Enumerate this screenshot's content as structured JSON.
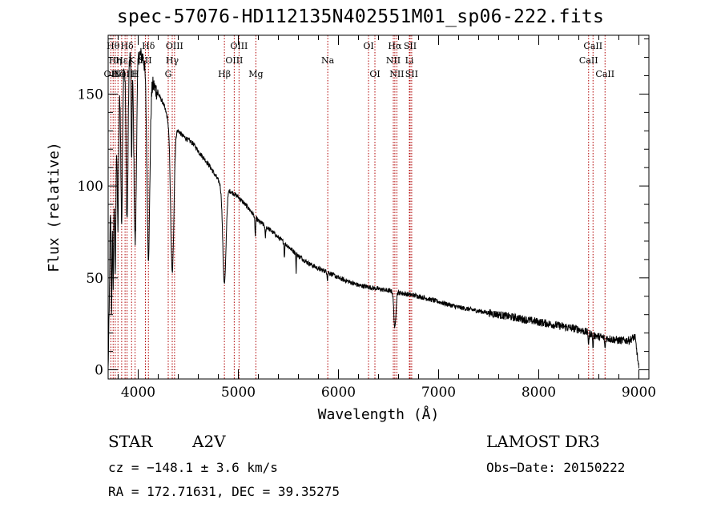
{
  "chart_data": {
    "type": "line",
    "title": "spec-57076-HD112135N402551M01_sp06-222.fits",
    "xlabel": "Wavelength (Å)",
    "ylabel": "Flux (relative)",
    "xlim": [
      3700,
      9100
    ],
    "ylim": [
      -5,
      182
    ],
    "xticks": [
      4000,
      5000,
      6000,
      7000,
      8000,
      9000
    ],
    "xtick_labels": [
      "4000",
      "5000",
      "6000",
      "7000",
      "8000",
      "9000"
    ],
    "yticks": [
      0,
      50,
      100,
      150
    ],
    "ytick_labels": [
      "0",
      "50",
      "100",
      "150"
    ],
    "series": [
      {
        "name": "Flux",
        "continuum_x": [
          3700,
          3710,
          3720,
          3760,
          3800,
          3850,
          3900,
          3950,
          4000,
          4050,
          4100,
          4150,
          4200,
          4250,
          4300,
          4350,
          4400,
          4450,
          4500,
          4550,
          4600,
          4700,
          4800,
          4850,
          4900,
          5000,
          5100,
          5200,
          5300,
          5400,
          5500,
          5600,
          5700,
          5800,
          5900,
          6000,
          6100,
          6200,
          6300,
          6400,
          6500,
          6600,
          6700,
          6800,
          7000,
          7200,
          7400,
          7600,
          7800,
          8000,
          8200,
          8400,
          8500,
          8600,
          8700,
          8800,
          8900,
          8960,
          8980,
          9000
        ],
        "continuum_y": [
          0,
          30,
          80,
          110,
          150,
          165,
          175,
          168,
          172,
          170,
          158,
          155,
          150,
          145,
          136,
          132,
          130,
          127,
          125,
          123,
          119,
          112,
          103,
          99,
          98,
          94,
          88,
          81,
          77,
          72,
          67,
          62,
          58,
          55,
          53,
          50,
          48,
          46,
          45,
          44,
          43,
          42,
          41,
          40,
          37,
          34,
          32,
          30,
          28,
          26,
          24,
          22,
          20,
          18,
          17,
          16,
          16,
          18,
          10,
          0
        ],
        "absorption_lines": [
          {
            "center": 3734,
            "depth": 60,
            "width": 4
          },
          {
            "center": 3750,
            "depth": 55,
            "width": 5
          },
          {
            "center": 3771,
            "depth": 68,
            "width": 6
          },
          {
            "center": 3798,
            "depth": 70,
            "width": 7
          },
          {
            "center": 3835,
            "depth": 80,
            "width": 8
          },
          {
            "center": 3889,
            "depth": 90,
            "width": 10
          },
          {
            "center": 3934,
            "depth": 60,
            "width": 4
          },
          {
            "center": 3970,
            "depth": 100,
            "width": 12
          },
          {
            "center": 4102,
            "depth": 95,
            "width": 14
          },
          {
            "center": 4340,
            "depth": 80,
            "width": 16
          },
          {
            "center": 4861,
            "depth": 52,
            "width": 16
          },
          {
            "center": 5169,
            "depth": 10,
            "width": 4
          },
          {
            "center": 5270,
            "depth": 6,
            "width": 4
          },
          {
            "center": 5460,
            "depth": 8,
            "width": 3
          },
          {
            "center": 5577,
            "depth": 12,
            "width": 2
          },
          {
            "center": 5890,
            "depth": 4,
            "width": 3
          },
          {
            "center": 6563,
            "depth": 20,
            "width": 10
          },
          {
            "center": 8498,
            "depth": 6,
            "width": 4
          },
          {
            "center": 8542,
            "depth": 7,
            "width": 4
          },
          {
            "center": 8662,
            "depth": 6,
            "width": 4
          }
        ]
      }
    ],
    "reference_lines": [
      {
        "x": 3727,
        "labels": [
          {
            "text": "OII",
            "row": 3
          }
        ]
      },
      {
        "x": 3750,
        "labels": [
          {
            "text": "Hθ",
            "row": 1
          }
        ]
      },
      {
        "x": 3771,
        "labels": [
          {
            "text": "Hη",
            "row": 2
          }
        ]
      },
      {
        "x": 3798,
        "labels": [
          {
            "text": "Hζ",
            "row": 3
          }
        ]
      },
      {
        "x": 3835,
        "labels": [
          {
            "text": "Hε",
            "row": 2
          }
        ]
      },
      {
        "x": 3869,
        "labels": [
          {
            "text": "NeIII",
            "row": 3
          }
        ]
      },
      {
        "x": 3889,
        "labels": [
          {
            "text": "Hδ",
            "row": 1
          }
        ]
      },
      {
        "x": 3934,
        "labels": [
          {
            "text": "K",
            "row": 2
          }
        ]
      },
      {
        "x": 3969,
        "labels": [
          {
            "text": "H",
            "row": 3
          }
        ]
      },
      {
        "x": 4072,
        "labels": [
          {
            "text": "SII",
            "row": 2
          }
        ]
      },
      {
        "x": 4102,
        "labels": [
          {
            "text": "Hδ",
            "row": 1
          }
        ]
      },
      {
        "x": 4300,
        "labels": [
          {
            "text": "G",
            "row": 3
          }
        ]
      },
      {
        "x": 4340,
        "labels": [
          {
            "text": "Hγ",
            "row": 2
          }
        ]
      },
      {
        "x": 4363,
        "labels": [
          {
            "text": "OIII",
            "row": 1
          }
        ]
      },
      {
        "x": 4861,
        "labels": [
          {
            "text": "Hβ",
            "row": 3
          }
        ]
      },
      {
        "x": 4959,
        "labels": [
          {
            "text": "OIII",
            "row": 2
          }
        ]
      },
      {
        "x": 5007,
        "labels": [
          {
            "text": "OIII",
            "row": 1
          }
        ]
      },
      {
        "x": 5175,
        "labels": [
          {
            "text": "Mg",
            "row": 3
          }
        ]
      },
      {
        "x": 5893,
        "labels": [
          {
            "text": "Na",
            "row": 2
          }
        ]
      },
      {
        "x": 6300,
        "labels": [
          {
            "text": "OI",
            "row": 1
          }
        ]
      },
      {
        "x": 6364,
        "labels": [
          {
            "text": "OI",
            "row": 3
          }
        ]
      },
      {
        "x": 6548,
        "labels": [
          {
            "text": "NII",
            "row": 2
          }
        ]
      },
      {
        "x": 6563,
        "labels": [
          {
            "text": "Hα",
            "row": 1
          }
        ]
      },
      {
        "x": 6583,
        "labels": [
          {
            "text": "NII",
            "row": 3
          }
        ]
      },
      {
        "x": 6708,
        "labels": [
          {
            "text": "Li",
            "row": 2
          }
        ]
      },
      {
        "x": 6716,
        "labels": [
          {
            "text": "SII",
            "row": 1
          }
        ]
      },
      {
        "x": 6731,
        "labels": [
          {
            "text": "SII",
            "row": 3
          }
        ]
      },
      {
        "x": 8498,
        "labels": [
          {
            "text": "CaII",
            "row": 2
          }
        ]
      },
      {
        "x": 8542,
        "labels": [
          {
            "text": "CaII",
            "row": 1
          }
        ]
      },
      {
        "x": 8662,
        "labels": [
          {
            "text": "CaII",
            "row": 3
          }
        ]
      }
    ]
  },
  "info": {
    "object_class": "STAR",
    "subclass": "A2V",
    "survey": "LAMOST DR3",
    "cz": "cz = −148.1 ± 3.6 km/s",
    "obs_date": "Obs−Date: 20150222",
    "radec": "RA = 172.71631, DEC =  39.35275"
  },
  "colors": {
    "spectrum": "#000000",
    "reference_line": "#b00000",
    "axis": "#000000"
  }
}
